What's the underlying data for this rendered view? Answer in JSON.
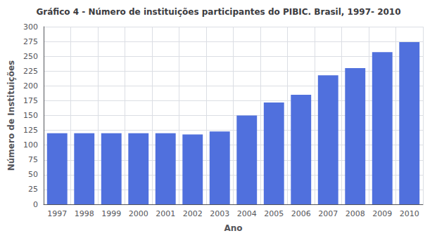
{
  "chart_data": {
    "type": "bar",
    "title": "Gráfico 4 - Número de instituições participantes do PIBIC. Brasil, 1997- 2010",
    "xlabel": "Ano",
    "ylabel": "Número de Instituições",
    "categories": [
      "1997",
      "1998",
      "1999",
      "2000",
      "2001",
      "2002",
      "2003",
      "2004",
      "2005",
      "2006",
      "2007",
      "2008",
      "2009",
      "2010"
    ],
    "values": [
      120,
      120,
      120,
      120,
      120,
      118,
      123,
      150,
      172,
      185,
      218,
      230,
      257,
      274
    ],
    "ylim": [
      0,
      300
    ],
    "yticks": [
      0,
      25,
      50,
      75,
      100,
      125,
      150,
      175,
      200,
      225,
      250,
      275,
      300
    ],
    "grid": true
  }
}
